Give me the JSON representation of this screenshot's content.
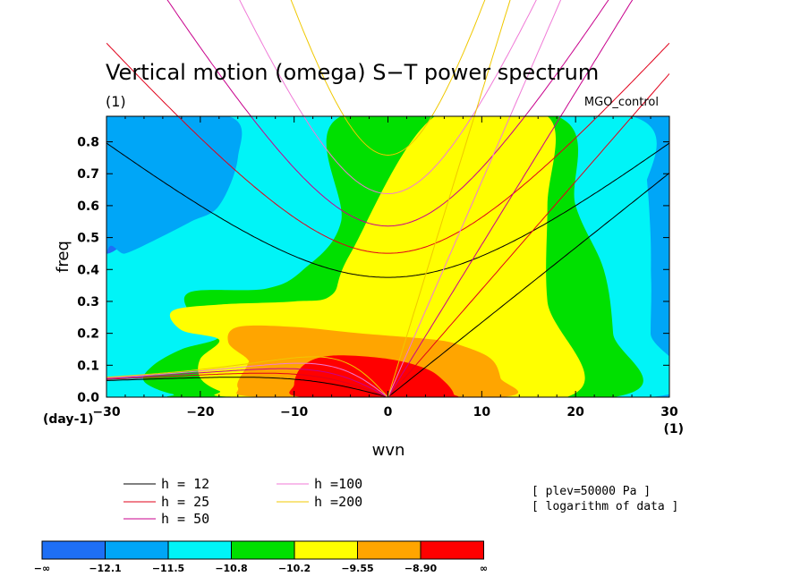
{
  "chart_data": {
    "type": "heatmap",
    "title": "Vertical motion (omega) S−T power spectrum",
    "subtitle_left": "(1)",
    "subtitle_right": "MGO_control",
    "xlabel": "wvn",
    "ylabel": "freq",
    "x_unit_label": "(1)",
    "y_unit_label": "(day-1)",
    "xlim": [
      -30,
      30
    ],
    "ylim": [
      0,
      0.88
    ],
    "xticks": [
      -30,
      -20,
      -10,
      0,
      10,
      20,
      30
    ],
    "xtick_labels": [
      "−30",
      "−20",
      "−10",
      "0",
      "10",
      "20",
      "30"
    ],
    "yticks": [
      0.0,
      0.1,
      0.2,
      0.3,
      0.4,
      0.5,
      0.6,
      0.7,
      0.8
    ],
    "ytick_labels": [
      "0.0",
      "0.1",
      "0.2",
      "0.3",
      "0.4",
      "0.5",
      "0.6",
      "0.7",
      "0.8"
    ],
    "levels": [
      "−∞",
      "−12.1",
      "−11.5",
      "−10.8",
      "−10.2",
      "−9.55",
      "−8.90",
      "∞"
    ],
    "colors": [
      "#1e6ff5",
      "#00a6f7",
      "#00f4f7",
      "#00e000",
      "#ffff00",
      "#ffa500",
      "#ff0000"
    ],
    "notes": [
      "[ plev=50000 Pa ]",
      "[ logarithm of data ]"
    ],
    "dispersion_curves": [
      {
        "label": "h = 12",
        "h": 12,
        "color": "#000000"
      },
      {
        "label": "h = 25",
        "h": 25,
        "color": "#e0001a"
      },
      {
        "label": "h = 50",
        "h": 50,
        "color": "#c8008c"
      },
      {
        "label": "h =100",
        "h": 100,
        "color": "#f07ad7"
      },
      {
        "label": "h =200",
        "h": 200,
        "color": "#f0c800"
      }
    ],
    "regions": [
      {
        "level": 1,
        "poly": [
          [
            -30,
            0.58
          ],
          [
            -28,
            0.88
          ],
          [
            -25,
            0.88
          ],
          [
            -25,
            0.7
          ],
          [
            -26,
            0.55
          ],
          [
            -30,
            0.45
          ]
        ]
      },
      {
        "level": 2,
        "poly": [
          [
            -30,
            0
          ],
          [
            -30,
            0.88
          ],
          [
            -17,
            0.88
          ],
          [
            -16,
            0.75
          ],
          [
            -18,
            0.6
          ],
          [
            -21,
            0.55
          ],
          [
            -25,
            0.49
          ],
          [
            -28,
            0.45
          ],
          [
            -30,
            0.44
          ]
        ]
      },
      {
        "level": 2,
        "poly": [
          [
            25,
            0.88
          ],
          [
            30,
            0.88
          ],
          [
            30,
            0
          ],
          [
            28,
            0
          ],
          [
            28,
            0.5
          ],
          [
            27,
            0.8
          ]
        ]
      },
      {
        "level": 3,
        "poly": [
          [
            -29,
            0.02
          ],
          [
            -28,
            0.07
          ],
          [
            -25,
            0.07
          ],
          [
            -22,
            0.08
          ],
          [
            -20,
            0.12
          ],
          [
            -25,
            0.17
          ],
          [
            -27,
            0.2
          ],
          [
            -28,
            0.4
          ],
          [
            -21,
            0.44
          ],
          [
            -16,
            0.47
          ],
          [
            -12,
            0.53
          ],
          [
            -9,
            0.62
          ],
          [
            -6,
            0.88
          ],
          [
            26,
            0.88
          ],
          [
            27,
            0.6
          ],
          [
            28,
            0.4
          ],
          [
            28,
            0.2
          ],
          [
            28,
            0
          ]
        ]
      },
      {
        "level": 4,
        "poly": [
          [
            -19,
            0
          ],
          [
            -23,
            0.01
          ],
          [
            -26,
            0.05
          ],
          [
            -25,
            0.1
          ],
          [
            -22,
            0.15
          ],
          [
            -18,
            0.19
          ],
          [
            -21,
            0.26
          ],
          [
            -21,
            0.33
          ],
          [
            -13,
            0.34
          ],
          [
            -9,
            0.4
          ],
          [
            -5,
            0.55
          ],
          [
            -5,
            0.88
          ],
          [
            18,
            0.88
          ],
          [
            20,
            0.6
          ],
          [
            23,
            0.4
          ],
          [
            24,
            0.2
          ],
          [
            24,
            0
          ]
        ]
      },
      {
        "level": 5,
        "poly": [
          [
            -15,
            0
          ],
          [
            -18,
            0.02
          ],
          [
            -20,
            0.06
          ],
          [
            -20,
            0.12
          ],
          [
            -18,
            0.18
          ],
          [
            -22,
            0.21
          ],
          [
            -23,
            0.27
          ],
          [
            -18,
            0.29
          ],
          [
            -10,
            0.3
          ],
          [
            -6,
            0.32
          ],
          [
            -4,
            0.45
          ],
          [
            5,
            0.88
          ],
          [
            17,
            0.88
          ],
          [
            17,
            0.6
          ],
          [
            17,
            0.3
          ],
          [
            19,
            0
          ]
        ]
      },
      {
        "level": 6,
        "poly": [
          [
            -13,
            0
          ],
          [
            -16,
            0.03
          ],
          [
            -15,
            0.1
          ],
          [
            -15,
            0.12
          ],
          [
            -17,
            0.17
          ],
          [
            -16,
            0.22
          ],
          [
            -10,
            0.22
          ],
          [
            -3,
            0.2
          ],
          [
            5,
            0.18
          ],
          [
            8,
            0.16
          ],
          [
            11,
            0.12
          ],
          [
            12,
            0.06
          ],
          [
            12,
            0
          ]
        ]
      },
      {
        "level": 7,
        "poly": [
          [
            -9,
            0
          ],
          [
            -10,
            0.04
          ],
          [
            -9,
            0.1
          ],
          [
            -6,
            0.13
          ],
          [
            0,
            0.12
          ],
          [
            4,
            0.09
          ],
          [
            6,
            0.05
          ],
          [
            7,
            0.01
          ],
          [
            6,
            0
          ]
        ]
      }
    ]
  }
}
